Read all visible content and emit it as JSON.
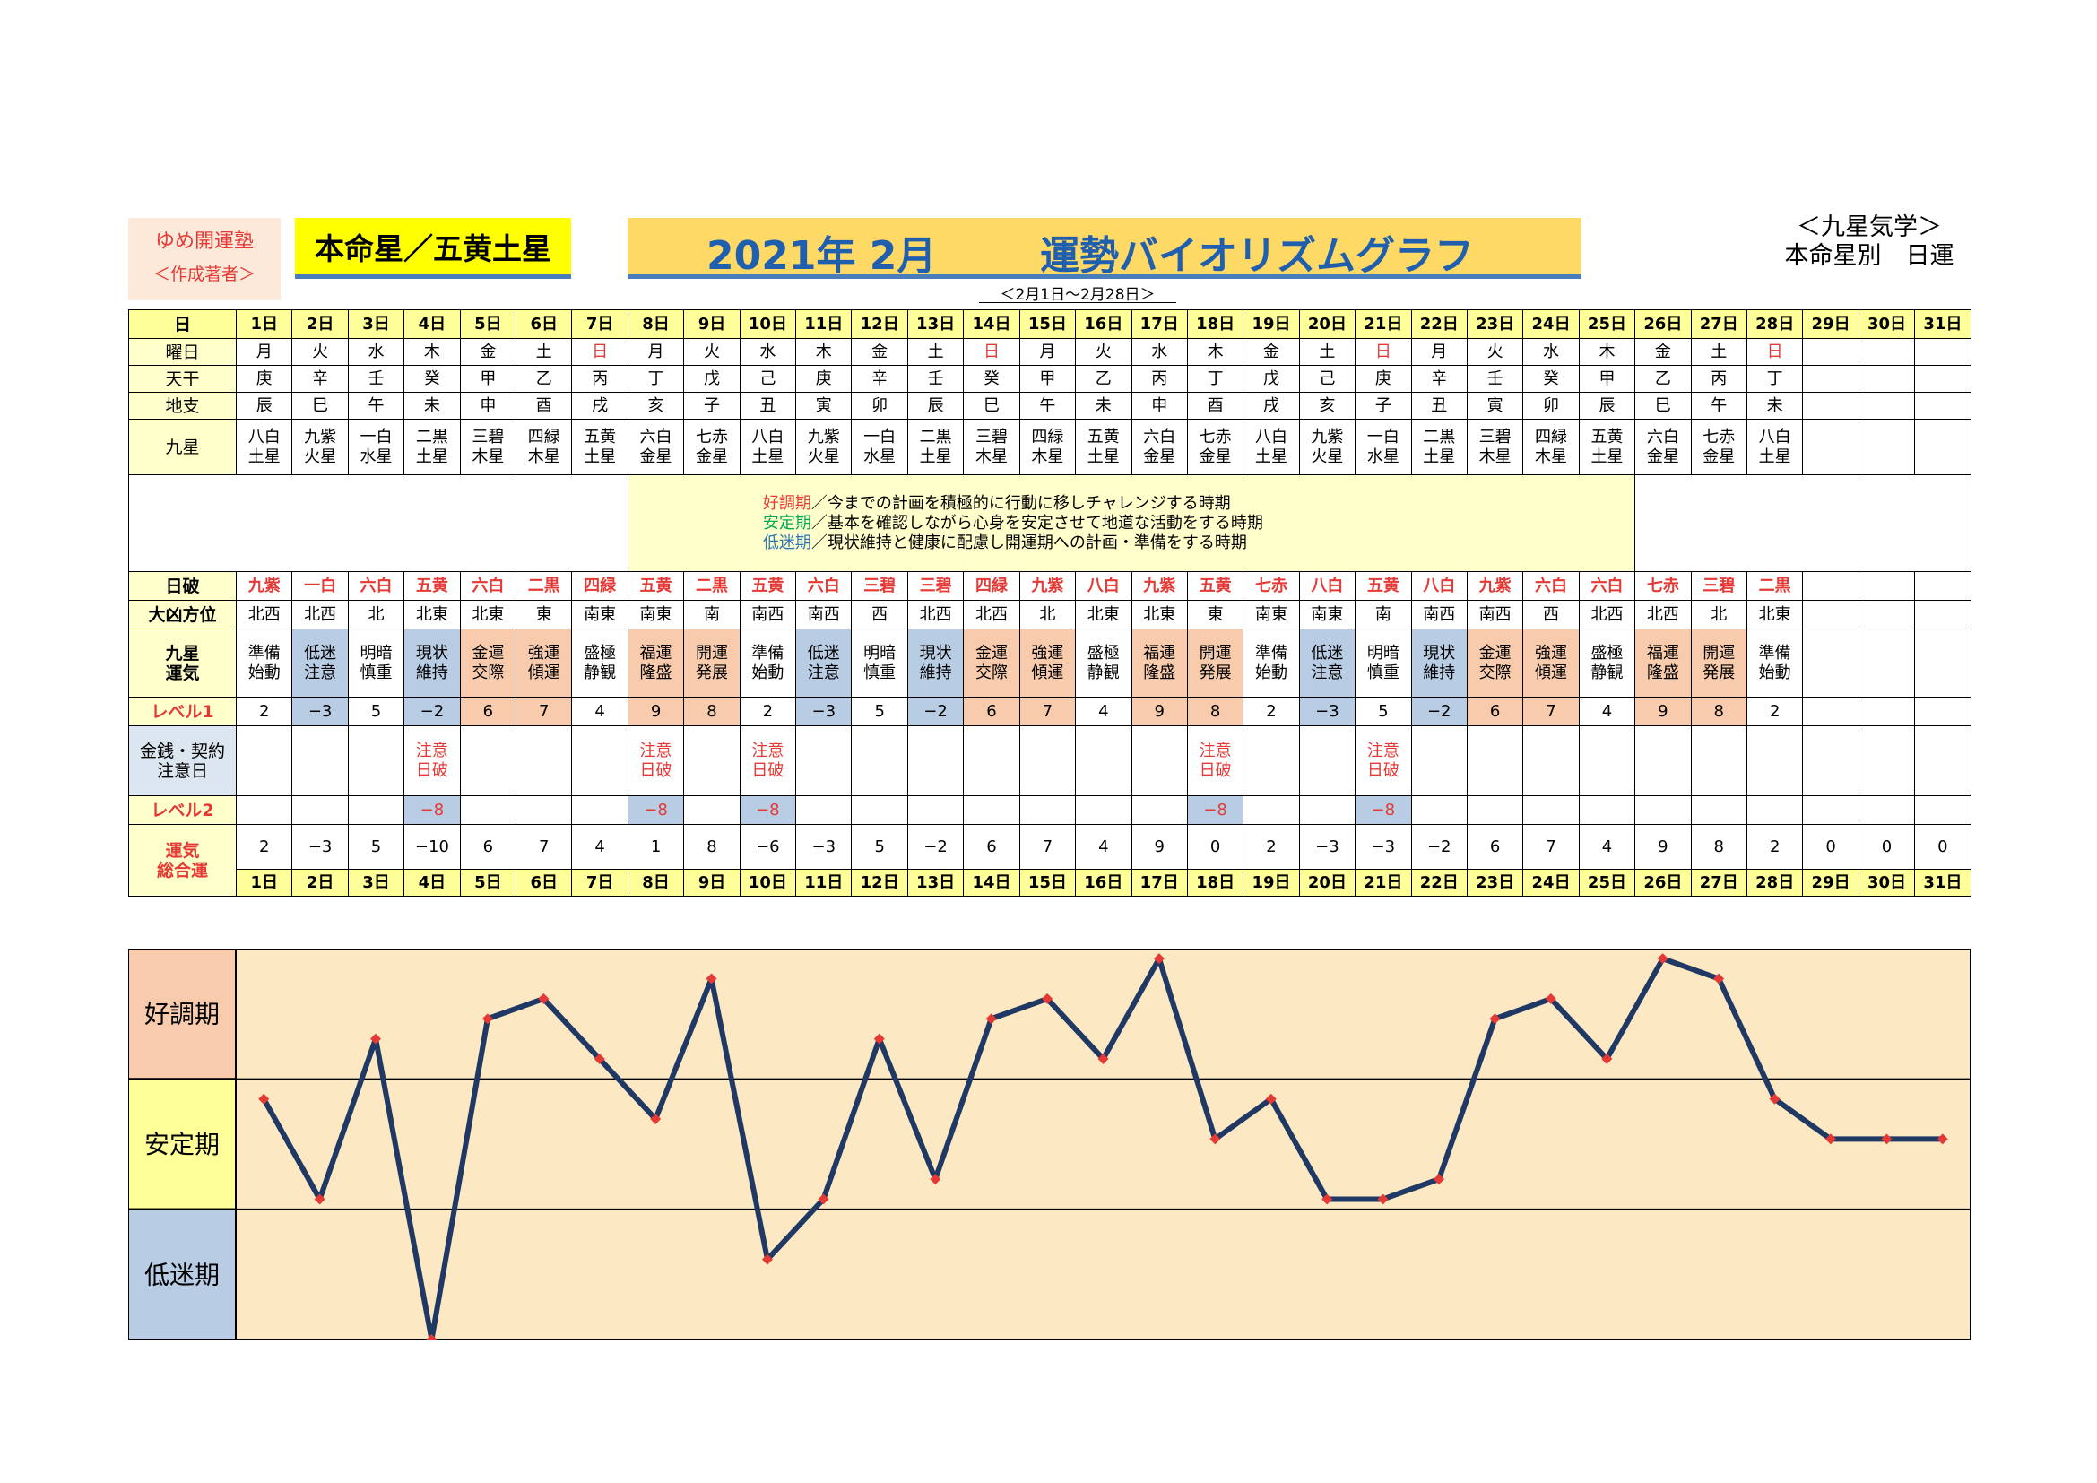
{
  "header": {
    "school_name": "ゆめ開運塾",
    "author": "＜作成著者＞",
    "honmei": "本命星／五黄土星",
    "year_month": "2021年 2月",
    "title": "運勢バイオリズムグラフ",
    "range": "＜2月1日～2月28日＞",
    "kyusei_label": "＜九星気学＞",
    "kyusei_sub": "本命星別　日運"
  },
  "row_labels": {
    "day": "日",
    "weekday": "曜日",
    "tenkan": "天干",
    "chishi": "地支",
    "kyusei": "九星",
    "hiyaburi": "日破",
    "daikyo": "大凶方位",
    "unki": "九星\n運気",
    "level1": "レベル1",
    "money": "金銭・契約\n注意日",
    "level2": "レベル2",
    "sogo": "運気\n総合運"
  },
  "days": [
    "1日",
    "2日",
    "3日",
    "4日",
    "5日",
    "6日",
    "7日",
    "8日",
    "9日",
    "10日",
    "11日",
    "12日",
    "13日",
    "14日",
    "15日",
    "16日",
    "17日",
    "18日",
    "19日",
    "20日",
    "21日",
    "22日",
    "23日",
    "24日",
    "25日",
    "26日",
    "27日",
    "28日",
    "29日",
    "30日",
    "31日"
  ],
  "weekdays": [
    "月",
    "火",
    "水",
    "木",
    "金",
    "土",
    "日",
    "月",
    "火",
    "水",
    "木",
    "金",
    "土",
    "日",
    "月",
    "火",
    "水",
    "木",
    "金",
    "土",
    "日",
    "月",
    "火",
    "水",
    "木",
    "金",
    "土",
    "日",
    "",
    "",
    ""
  ],
  "sunday_index": [
    6,
    13,
    20,
    27
  ],
  "tenkan": [
    "庚",
    "辛",
    "壬",
    "癸",
    "甲",
    "乙",
    "丙",
    "丁",
    "戊",
    "己",
    "庚",
    "辛",
    "壬",
    "癸",
    "甲",
    "乙",
    "丙",
    "丁",
    "戊",
    "己",
    "庚",
    "辛",
    "壬",
    "癸",
    "甲",
    "乙",
    "丙",
    "丁",
    "",
    "",
    ""
  ],
  "chishi": [
    "辰",
    "巳",
    "午",
    "未",
    "申",
    "酉",
    "戌",
    "亥",
    "子",
    "丑",
    "寅",
    "卯",
    "辰",
    "巳",
    "午",
    "未",
    "申",
    "酉",
    "戌",
    "亥",
    "子",
    "丑",
    "寅",
    "卯",
    "辰",
    "巳",
    "午",
    "未",
    "",
    "",
    ""
  ],
  "kyusei": [
    [
      "八白",
      "土星"
    ],
    [
      "九紫",
      "火星"
    ],
    [
      "一白",
      "水星"
    ],
    [
      "二黒",
      "土星"
    ],
    [
      "三碧",
      "木星"
    ],
    [
      "四緑",
      "木星"
    ],
    [
      "五黄",
      "土星"
    ],
    [
      "六白",
      "金星"
    ],
    [
      "七赤",
      "金星"
    ],
    [
      "八白",
      "土星"
    ],
    [
      "九紫",
      "火星"
    ],
    [
      "一白",
      "水星"
    ],
    [
      "二黒",
      "土星"
    ],
    [
      "三碧",
      "木星"
    ],
    [
      "四緑",
      "木星"
    ],
    [
      "五黄",
      "土星"
    ],
    [
      "六白",
      "金星"
    ],
    [
      "七赤",
      "金星"
    ],
    [
      "八白",
      "土星"
    ],
    [
      "九紫",
      "火星"
    ],
    [
      "一白",
      "水星"
    ],
    [
      "二黒",
      "土星"
    ],
    [
      "三碧",
      "木星"
    ],
    [
      "四緑",
      "木星"
    ],
    [
      "五黄",
      "土星"
    ],
    [
      "六白",
      "金星"
    ],
    [
      "七赤",
      "金星"
    ],
    [
      "八白",
      "土星"
    ],
    [
      "",
      ""
    ],
    [
      "",
      ""
    ],
    [
      "",
      ""
    ]
  ],
  "notes": [
    {
      "term": "好調期",
      "text": "／今までの計画を積極的に行動に移しチャレンジする時期",
      "color": "red"
    },
    {
      "term": "安定期",
      "text": "／基本を確認しながら心身を安定させて地道な活動をする時期",
      "color": "green"
    },
    {
      "term": "低迷期",
      "text": "／現状維持と健康に配慮し開運期への計画・準備をする時期",
      "color": "blue"
    }
  ],
  "hiyaburi": [
    "九紫",
    "一白",
    "六白",
    "五黄",
    "六白",
    "二黒",
    "四緑",
    "五黄",
    "二黒",
    "五黄",
    "六白",
    "三碧",
    "三碧",
    "四緑",
    "九紫",
    "八白",
    "九紫",
    "五黄",
    "七赤",
    "八白",
    "五黄",
    "八白",
    "九紫",
    "六白",
    "六白",
    "七赤",
    "三碧",
    "二黒",
    "",
    "",
    ""
  ],
  "daikyo": [
    "北西",
    "北西",
    "北",
    "北東",
    "北東",
    "東",
    "南東",
    "南東",
    "南",
    "南西",
    "南西",
    "西",
    "北西",
    "北西",
    "北",
    "北東",
    "北東",
    "東",
    "南東",
    "南東",
    "南",
    "南西",
    "南西",
    "西",
    "北西",
    "北西",
    "北",
    "北東",
    "",
    "",
    ""
  ],
  "unki": [
    [
      "準備",
      "始動"
    ],
    [
      "低迷",
      "注意"
    ],
    [
      "明暗",
      "慎重"
    ],
    [
      "現状",
      "維持"
    ],
    [
      "金運",
      "交際"
    ],
    [
      "強運",
      "傾運"
    ],
    [
      "盛極",
      "静観"
    ],
    [
      "福運",
      "隆盛"
    ],
    [
      "開運",
      "発展"
    ],
    [
      "準備",
      "始動"
    ],
    [
      "低迷",
      "注意"
    ],
    [
      "明暗",
      "慎重"
    ],
    [
      "現状",
      "維持"
    ],
    [
      "金運",
      "交際"
    ],
    [
      "強運",
      "傾運"
    ],
    [
      "盛極",
      "静観"
    ],
    [
      "福運",
      "隆盛"
    ],
    [
      "開運",
      "発展"
    ],
    [
      "準備",
      "始動"
    ],
    [
      "低迷",
      "注意"
    ],
    [
      "明暗",
      "慎重"
    ],
    [
      "現状",
      "維持"
    ],
    [
      "金運",
      "交際"
    ],
    [
      "強運",
      "傾運"
    ],
    [
      "盛極",
      "静観"
    ],
    [
      "福運",
      "隆盛"
    ],
    [
      "開運",
      "発展"
    ],
    [
      "準備",
      "始動"
    ],
    [
      "",
      ""
    ],
    [
      "",
      ""
    ],
    [
      "",
      ""
    ]
  ],
  "level1": [
    "2",
    "−3",
    "5",
    "−2",
    "6",
    "7",
    "4",
    "9",
    "8",
    "2",
    "−3",
    "5",
    "−2",
    "6",
    "7",
    "4",
    "9",
    "8",
    "2",
    "−3",
    "5",
    "−2",
    "6",
    "7",
    "4",
    "9",
    "8",
    "2",
    "",
    "",
    ""
  ],
  "level1_tone": [
    "",
    "b",
    "",
    "b",
    "g",
    "g",
    "",
    "g",
    "g",
    "",
    "b",
    "",
    "b",
    "g",
    "g",
    "",
    "g",
    "g",
    "",
    "b",
    "",
    "b",
    "g",
    "g",
    "",
    "g",
    "g",
    "",
    "",
    "",
    ""
  ],
  "money": [
    [
      "",
      ""
    ],
    [
      "",
      ""
    ],
    [
      "",
      ""
    ],
    [
      "注意",
      "日破"
    ],
    [
      "",
      ""
    ],
    [
      "",
      ""
    ],
    [
      "",
      ""
    ],
    [
      "注意",
      "日破"
    ],
    [
      "",
      ""
    ],
    [
      "注意",
      "日破"
    ],
    [
      "",
      ""
    ],
    [
      "",
      ""
    ],
    [
      "",
      ""
    ],
    [
      "",
      ""
    ],
    [
      "",
      ""
    ],
    [
      "",
      ""
    ],
    [
      "",
      ""
    ],
    [
      "注意",
      "日破"
    ],
    [
      "",
      ""
    ],
    [
      "",
      ""
    ],
    [
      "注意",
      "日破"
    ],
    [
      "",
      ""
    ],
    [
      "",
      ""
    ],
    [
      "",
      ""
    ],
    [
      "",
      ""
    ],
    [
      "",
      ""
    ],
    [
      "",
      ""
    ],
    [
      "",
      ""
    ],
    [
      "",
      ""
    ],
    [
      "",
      ""
    ],
    [
      "",
      ""
    ]
  ],
  "level2": [
    "",
    "",
    "",
    "−8",
    "",
    "",
    "",
    "−8",
    "",
    "−8",
    "",
    "",
    "",
    "",
    "",
    "",
    "",
    "−8",
    "",
    "",
    "−8",
    "",
    "",
    "",
    "",
    "",
    "",
    "",
    "",
    "",
    ""
  ],
  "sogo": [
    "2",
    "−3",
    "5",
    "−10",
    "6",
    "7",
    "4",
    "1",
    "8",
    "−6",
    "−3",
    "5",
    "−2",
    "6",
    "7",
    "4",
    "9",
    "0",
    "2",
    "−3",
    "−3",
    "−2",
    "6",
    "7",
    "4",
    "9",
    "8",
    "2",
    "0",
    "0",
    "0"
  ],
  "chart_data": {
    "type": "line",
    "x": [
      "1日",
      "2日",
      "3日",
      "4日",
      "5日",
      "6日",
      "7日",
      "8日",
      "9日",
      "10日",
      "11日",
      "12日",
      "13日",
      "14日",
      "15日",
      "16日",
      "17日",
      "18日",
      "19日",
      "20日",
      "21日",
      "22日",
      "23日",
      "24日",
      "25日",
      "26日",
      "27日",
      "28日",
      "29日",
      "30日",
      "31日"
    ],
    "series": [
      {
        "values": [
          2,
          -3,
          5,
          -10,
          6,
          7,
          4,
          1,
          8,
          -6,
          -3,
          5,
          -2,
          6,
          7,
          4,
          9,
          0,
          2,
          -3,
          -3,
          -2,
          6,
          7,
          4,
          9,
          8,
          2,
          0,
          0,
          0
        ]
      }
    ],
    "bands": [
      "好調期",
      "安定期",
      "低迷期"
    ],
    "band_colors": [
      "#f8cbad",
      "#ffff99",
      "#b8cce4"
    ],
    "ylim": [
      -10,
      9.5
    ],
    "line_color": "#1f3864",
    "marker_color": "#e53935",
    "plot_bg": "#fce9c4"
  }
}
